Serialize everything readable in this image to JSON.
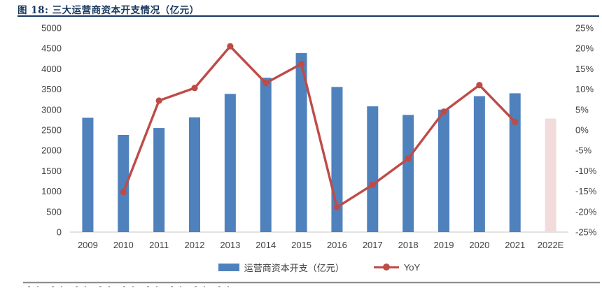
{
  "figure": {
    "title": "图 18:  三大运营商资本开支情况（亿元）"
  },
  "chart_data": {
    "type": "combo-bar-line",
    "title": "三大运营商资本开支情况（亿元）",
    "categories": [
      "2009",
      "2010",
      "2011",
      "2012",
      "2013",
      "2014",
      "2015",
      "2016",
      "2017",
      "2018",
      "2019",
      "2020",
      "2021",
      "2022E"
    ],
    "series": [
      {
        "name": "运营商资本开支（亿元）",
        "type": "bar",
        "axis": "left",
        "values": [
          2800,
          2380,
          2550,
          2810,
          3385,
          3780,
          4385,
          3555,
          3080,
          2870,
          3000,
          3330,
          3400,
          2780
        ],
        "color": "#4F81BD",
        "highlight_index": 13,
        "highlight_color": "#F2DCDB"
      },
      {
        "name": "YoY",
        "type": "line",
        "axis": "right",
        "values": [
          null,
          -15.2,
          7.2,
          10.3,
          20.5,
          11.5,
          16.2,
          -18.9,
          -13.4,
          -7.0,
          4.5,
          11.0,
          2.0,
          null
        ],
        "color": "#BE4B48",
        "marker": "circle"
      }
    ],
    "left_axis": {
      "min": 0,
      "max": 5000,
      "step": 500,
      "tick_labels": [
        "0",
        "500",
        "1000",
        "1500",
        "2000",
        "2500",
        "3000",
        "3500",
        "4000",
        "4500",
        "5000"
      ]
    },
    "right_axis": {
      "min": -25,
      "max": 25,
      "step": 5,
      "format": "percent",
      "tick_labels": [
        "-25%",
        "-20%",
        "-15%",
        "-10%",
        "-5%",
        "0%",
        "5%",
        "10%",
        "15%",
        "20%",
        "25%"
      ]
    },
    "legend_position": "bottom",
    "grid": false
  },
  "legend": {
    "items": [
      {
        "label": "运营商资本开支（亿元）",
        "type": "bar",
        "color": "#4F81BD"
      },
      {
        "label": "YoY",
        "type": "line",
        "color": "#BE4B48"
      }
    ]
  },
  "colors": {
    "bar": "#4F81BD",
    "bar_forecast": "#F2DCDB",
    "line": "#BE4B48",
    "title": "#17375E",
    "tick_text": "#404040",
    "axis_line": "#D9D9D9",
    "divider": "#8f8f8f"
  }
}
